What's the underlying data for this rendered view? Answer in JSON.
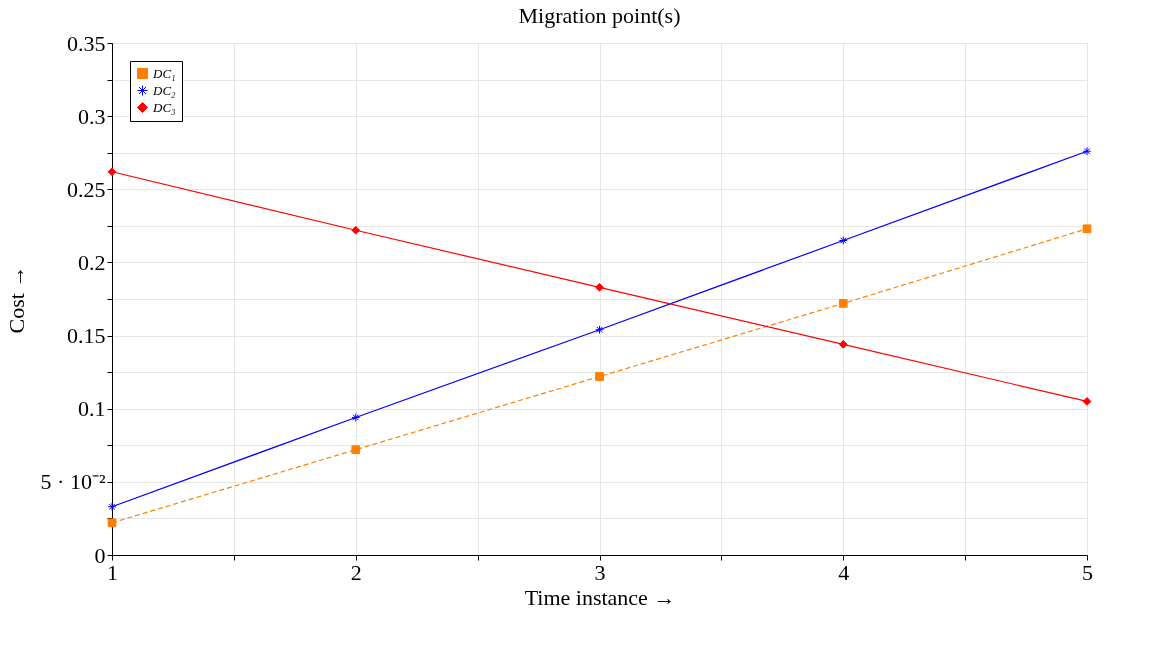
{
  "chart_data": {
    "type": "line",
    "title": "Migration point(s)",
    "xlabel": "Time instance →",
    "ylabel": "Cost →",
    "x": [
      1,
      2,
      3,
      4,
      5
    ],
    "series": [
      {
        "name": "DC₁",
        "color": "#ff8000",
        "marker": "square",
        "line_style": "dashed",
        "values": [
          0.022,
          0.072,
          0.122,
          0.172,
          0.223
        ]
      },
      {
        "name": "DC₂",
        "color": "#0000ff",
        "marker": "cross",
        "line_style": "solid",
        "values": [
          0.033,
          0.094,
          0.154,
          0.215,
          0.276
        ]
      },
      {
        "name": "DC₃",
        "color": "#ff0000",
        "marker": "diamond",
        "line_style": "solid",
        "values": [
          0.262,
          0.222,
          0.183,
          0.144,
          0.105
        ]
      }
    ],
    "xlim": [
      1,
      5
    ],
    "xticks": [
      1,
      {
        "value": 1.5,
        "label": null
      },
      2,
      {
        "value": 2.5,
        "label": null
      },
      3,
      {
        "value": 3.5,
        "label": null
      },
      4,
      {
        "value": 4.5,
        "label": null
      },
      5
    ],
    "ylim": [
      0,
      0.35
    ],
    "yticks": [
      0,
      {
        "value": 0.025,
        "label": null
      },
      {
        "value": 0.05,
        "label": "5 · 10⁻²"
      },
      {
        "value": 0.075,
        "label": null
      },
      0.1,
      {
        "value": 0.125,
        "label": null
      },
      0.15,
      {
        "value": 0.175,
        "label": null
      },
      0.2,
      {
        "value": 0.225,
        "label": null
      },
      0.25,
      {
        "value": 0.275,
        "label": null
      },
      0.3,
      {
        "value": 0.325,
        "label": null
      },
      0.35
    ],
    "grid": true,
    "legend": "top left"
  }
}
